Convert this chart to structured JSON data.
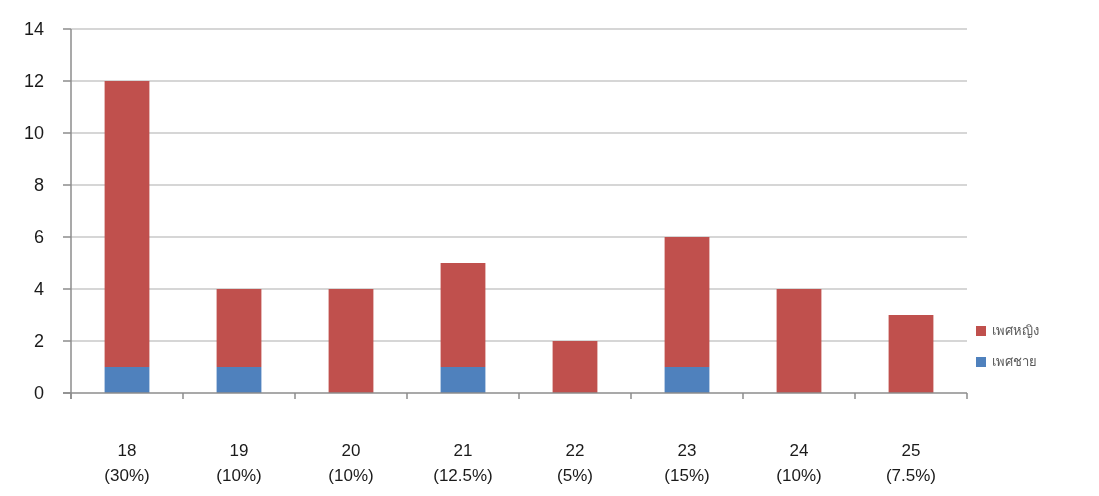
{
  "chart_data": {
    "type": "bar",
    "stacked": true,
    "categories": [
      "18\n(30%)",
      "19\n(10%)",
      "20\n(10%)",
      "21\n(12.5%)",
      "22\n(5%)",
      "23\n(15%)",
      "24\n(10%)",
      "25\n(7.5%)"
    ],
    "series": [
      {
        "name": "เพศชาย",
        "color": "#4f81bd",
        "values": [
          1,
          1,
          0,
          1,
          0,
          1,
          0,
          0
        ]
      },
      {
        "name": "เพศหญิง",
        "color": "#c0504d",
        "values": [
          11,
          3,
          4,
          4,
          2,
          5,
          4,
          3
        ]
      }
    ],
    "ylim": [
      0,
      14
    ],
    "yticks": [
      0,
      2,
      4,
      6,
      8,
      10,
      12,
      14
    ],
    "grid": "y",
    "legend": "right"
  }
}
